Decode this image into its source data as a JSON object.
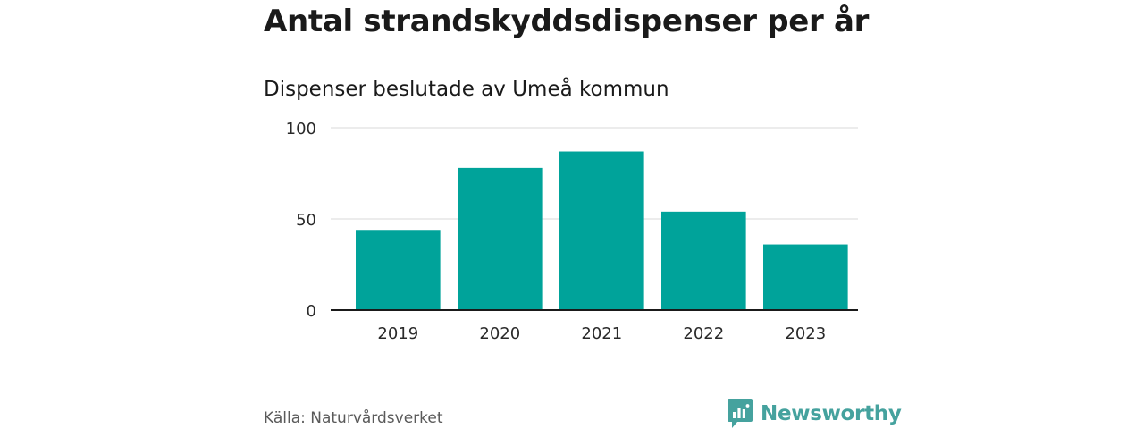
{
  "title": "Antal strandskyddsdispenser per år",
  "subtitle": "Dispenser beslutade av Umeå kommun",
  "source": "Källa: Naturvårdsverket",
  "brand": {
    "name": "Newsworthy",
    "icon": "newsworthy-logo-icon",
    "color": "#45a29e"
  },
  "colors": {
    "bar": "#00a39a",
    "grid": "#d9d9d9",
    "axis": "#1a1a1a"
  },
  "chart_data": {
    "type": "bar",
    "title": "Antal strandskyddsdispenser per år",
    "subtitle": "Dispenser beslutade av Umeå kommun",
    "xlabel": "",
    "ylabel": "",
    "categories": [
      "2019",
      "2020",
      "2021",
      "2022",
      "2023"
    ],
    "values": [
      44,
      78,
      87,
      54,
      36
    ],
    "ylim": [
      0,
      100
    ],
    "yticks": [
      "0",
      "50",
      "100"
    ],
    "grid": true,
    "legend": "none"
  }
}
